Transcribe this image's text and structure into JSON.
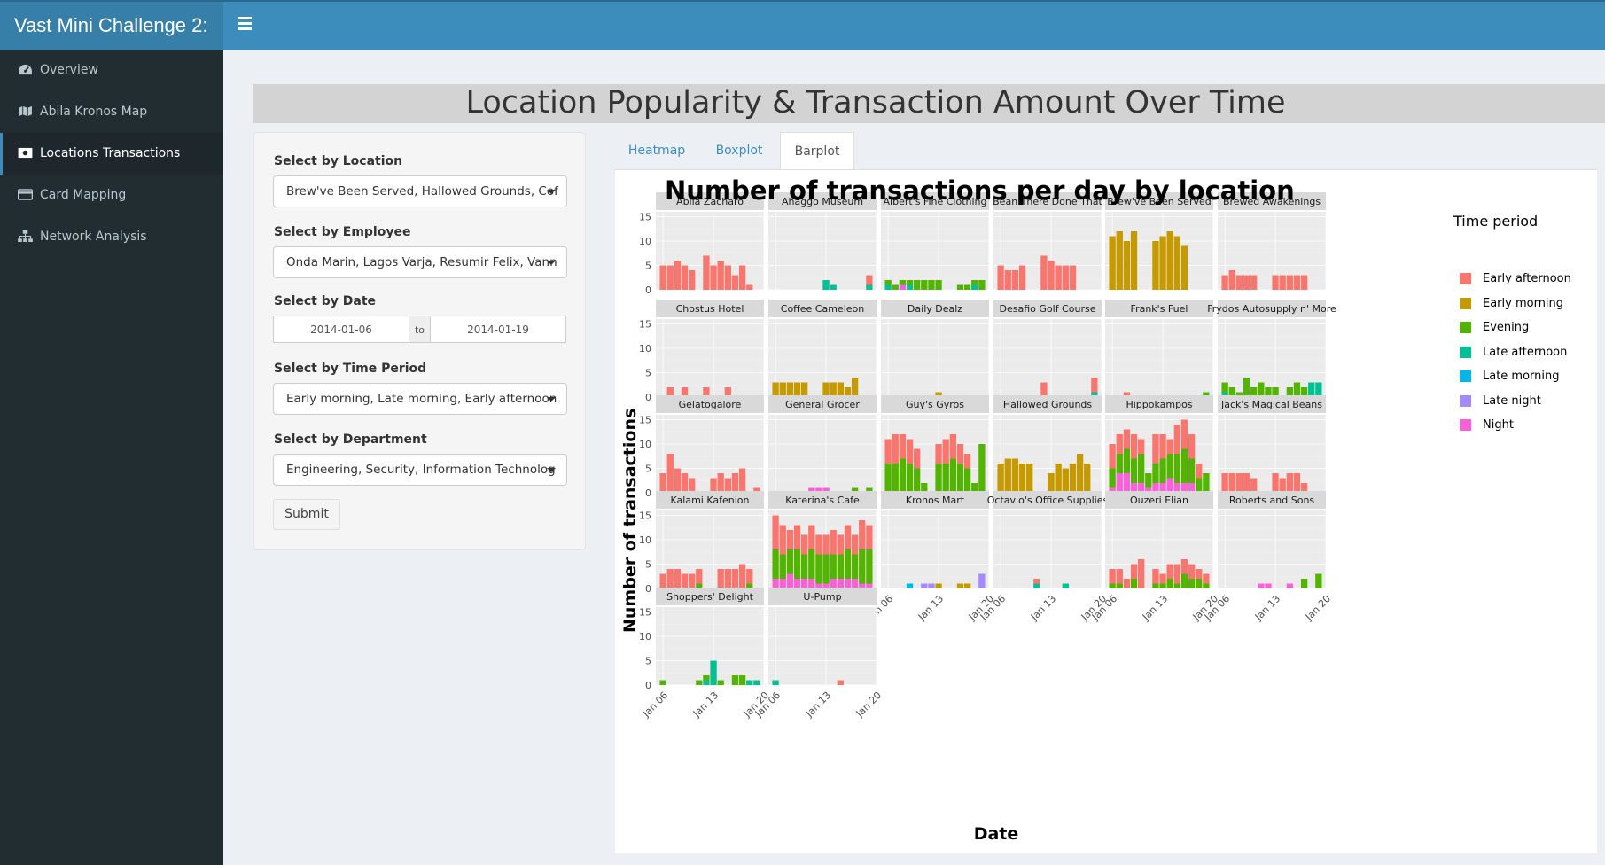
{
  "app": {
    "brand": "Vast Mini Challenge 2:"
  },
  "sidebar": {
    "items": [
      {
        "label": "Overview",
        "icon": "dashboard-icon"
      },
      {
        "label": "Abila Kronos Map",
        "icon": "map-icon"
      },
      {
        "label": "Locations Transactions",
        "icon": "money-icon"
      },
      {
        "label": "Card Mapping",
        "icon": "credit-card-icon"
      },
      {
        "label": "Network Analysis",
        "icon": "sitemap-icon"
      }
    ]
  },
  "page": {
    "title": "Location Popularity & Transaction Amount Over Time"
  },
  "filters": {
    "location": {
      "label": "Select by Location",
      "value": "Brew've Been Served, Hallowed Grounds, Cof"
    },
    "employee": {
      "label": "Select by Employee",
      "value": "Onda Marin, Lagos Varja, Resumir Felix, Vann"
    },
    "date": {
      "label": "Select by Date",
      "start": "2014-01-06",
      "separator": "to",
      "end": "2014-01-19"
    },
    "time_period": {
      "label": "Select by Time Period",
      "value": "Early morning, Late morning, Early afternoon"
    },
    "department": {
      "label": "Select by Department",
      "value": "Engineering, Security, Information Technolog"
    },
    "submit_label": "Submit"
  },
  "tabs": [
    "Heatmap",
    "Boxplot",
    "Barplot"
  ],
  "active_tab": "Barplot",
  "chart_data": {
    "type": "bar",
    "stacked": true,
    "faceted": true,
    "title": "Number of transactions per day by location",
    "xlabel": "Date",
    "ylabel": "Number of transactions",
    "ylim": [
      0,
      16
    ],
    "yticks": [
      0,
      5,
      10,
      15
    ],
    "xticks": [
      "Jan 06",
      "Jan 13",
      "Jan 20"
    ],
    "days": [
      "2014-01-06",
      "2014-01-07",
      "2014-01-08",
      "2014-01-09",
      "2014-01-10",
      "2014-01-11",
      "2014-01-12",
      "2014-01-13",
      "2014-01-14",
      "2014-01-15",
      "2014-01-16",
      "2014-01-17",
      "2014-01-18",
      "2014-01-19"
    ],
    "legend": {
      "title": "Time period",
      "position": "right"
    },
    "series": [
      {
        "name": "Early afternoon",
        "color": "#F8766D"
      },
      {
        "name": "Early morning",
        "color": "#C49A00"
      },
      {
        "name": "Evening",
        "color": "#53B400"
      },
      {
        "name": "Late afternoon",
        "color": "#00C094"
      },
      {
        "name": "Late morning",
        "color": "#00B6EB"
      },
      {
        "name": "Late night",
        "color": "#A58AFF"
      },
      {
        "name": "Night",
        "color": "#FB61D7"
      }
    ],
    "panels": [
      {
        "name": "Abila Zacharo",
        "bars": [
          {
            "EA": 5
          },
          {
            "EA": 5
          },
          {
            "EA": 6
          },
          {
            "EA": 5
          },
          {
            "EA": 4
          },
          {},
          {
            "EA": 7
          },
          {
            "EA": 5
          },
          {
            "EA": 6
          },
          {
            "EA": 5
          },
          {
            "EA": 3
          },
          {
            "EA": 5
          },
          {
            "EA": 1
          },
          {}
        ]
      },
      {
        "name": "Ahaggo Museum",
        "bars": [
          {},
          {},
          {},
          {},
          {},
          {},
          {},
          {
            "LA": 2
          },
          {
            "LA": 1
          },
          {},
          {},
          {},
          {},
          {
            "EA": 2,
            "LA": 1
          }
        ]
      },
      {
        "name": "Albert's Fine Clothing",
        "bars": [
          {
            "E": 1,
            "LA": 1
          },
          {
            "E": 1
          },
          {
            "E": 1,
            "N": 1
          },
          {
            "E": 1,
            "LA": 1
          },
          {
            "E": 2
          },
          {
            "E": 2
          },
          {
            "E": 2
          },
          {
            "E": 2
          },
          {},
          {},
          {
            "E": 1
          },
          {
            "E": 1
          },
          {
            "E": 1,
            "LA": 1
          },
          {
            "E": 2
          }
        ]
      },
      {
        "name": "Bean There Done That",
        "bars": [
          {
            "EA": 5
          },
          {
            "EA": 4
          },
          {
            "EA": 4
          },
          {
            "EA": 5
          },
          {},
          {},
          {
            "EA": 7
          },
          {
            "EA": 6
          },
          {
            "EA": 5
          },
          {
            "EA": 5
          },
          {
            "EA": 5
          },
          {},
          {},
          {}
        ]
      },
      {
        "name": "Brew've Been Served",
        "bars": [
          {
            "EM": 11
          },
          {
            "EM": 12
          },
          {
            "EM": 10
          },
          {
            "EM": 12
          },
          {},
          {},
          {
            "EM": 10
          },
          {
            "EM": 11
          },
          {
            "EM": 12
          },
          {
            "EM": 11
          },
          {
            "EM": 9
          },
          {},
          {},
          {}
        ]
      },
      {
        "name": "Brewed Awakenings",
        "bars": [
          {
            "EA": 3
          },
          {
            "EA": 4
          },
          {
            "EA": 3
          },
          {
            "EA": 3
          },
          {
            "EA": 3
          },
          {},
          {},
          {
            "EA": 3
          },
          {
            "EA": 3
          },
          {
            "EA": 3
          },
          {
            "EA": 3
          },
          {
            "EA": 3
          },
          {},
          {}
        ]
      },
      {
        "name": "Chostus Hotel",
        "bars": [
          {},
          {
            "EA": 2
          },
          {},
          {
            "EA": 2
          },
          {},
          {},
          {
            "EA": 2
          },
          {},
          {},
          {
            "EA": 2
          },
          {},
          {},
          {},
          {}
        ]
      },
      {
        "name": "Coffee Cameleon",
        "bars": [
          {
            "EM": 3
          },
          {
            "EM": 3
          },
          {
            "EM": 3
          },
          {
            "EM": 3
          },
          {
            "EM": 3
          },
          {},
          {},
          {
            "EM": 3
          },
          {
            "EM": 3
          },
          {
            "EM": 3
          },
          {
            "EM": 2
          },
          {
            "EM": 4
          },
          {},
          {}
        ]
      },
      {
        "name": "Daily Dealz",
        "bars": [
          {},
          {},
          {},
          {},
          {},
          {},
          {},
          {
            "EM": 1
          },
          {},
          {},
          {},
          {},
          {},
          {}
        ]
      },
      {
        "name": "Desafio Golf Course",
        "bars": [
          {},
          {},
          {},
          {},
          {},
          {},
          {
            "EA": 3
          },
          {},
          {},
          {},
          {},
          {},
          {},
          {
            "EA": 3,
            "LA": 1
          }
        ]
      },
      {
        "name": "Frank's Fuel",
        "bars": [
          {},
          {},
          {
            "EA": 1
          },
          {},
          {},
          {},
          {},
          {},
          {},
          {},
          {},
          {},
          {},
          {
            "E": 1
          }
        ]
      },
      {
        "name": "Frydos Autosupply n' More",
        "bars": [
          {
            "E": 2,
            "LA": 1
          },
          {
            "E": 2
          },
          {
            "E": 1
          },
          {
            "E": 4
          },
          {
            "E": 2
          },
          {
            "E": 3
          },
          {
            "E": 2
          },
          {
            "E": 2
          },
          {},
          {
            "E": 2
          },
          {
            "E": 3
          },
          {
            "E": 2
          },
          {
            "LA": 3
          },
          {
            "LA": 3
          }
        ]
      },
      {
        "name": "Gelatogalore",
        "bars": [
          {
            "EA": 4
          },
          {
            "EA": 8
          },
          {
            "EA": 5
          },
          {
            "EA": 4
          },
          {
            "EA": 3
          },
          {},
          {},
          {
            "EA": 3
          },
          {
            "EA": 4
          },
          {
            "EA": 3
          },
          {
            "EA": 4
          },
          {
            "EA": 5
          },
          {},
          {
            "EA": 1
          }
        ]
      },
      {
        "name": "General Grocer",
        "bars": [
          {},
          {},
          {},
          {},
          {},
          {
            "N": 1
          },
          {
            "N": 1
          },
          {
            "N": 1
          },
          {},
          {},
          {},
          {
            "E": 1
          },
          {},
          {
            "E": 1
          }
        ]
      },
      {
        "name": "Guy's Gyros",
        "bars": [
          {
            "EA": 5,
            "E": 6
          },
          {
            "EA": 6,
            "E": 6
          },
          {
            "EA": 5,
            "E": 7
          },
          {
            "EA": 5,
            "E": 6
          },
          {
            "EA": 4,
            "E": 5
          },
          {
            "E": 2
          },
          {},
          {
            "EA": 4,
            "E": 6
          },
          {
            "EA": 5,
            "E": 6
          },
          {
            "EA": 5,
            "E": 7
          },
          {
            "EA": 4,
            "E": 6
          },
          {
            "EA": 3,
            "E": 5
          },
          {
            "E": 2
          },
          {
            "E": 10
          }
        ]
      },
      {
        "name": "Hallowed Grounds",
        "bars": [
          {
            "EM": 6
          },
          {
            "EM": 7
          },
          {
            "EM": 7
          },
          {
            "EM": 6
          },
          {
            "EM": 6
          },
          {},
          {},
          {
            "EM": 4
          },
          {
            "EM": 6
          },
          {
            "EM": 5
          },
          {
            "EM": 6
          },
          {
            "EM": 8
          },
          {
            "EM": 6
          },
          {}
        ]
      },
      {
        "name": "Hippokampos",
        "bars": [
          {
            "EA": 5,
            "E": 4,
            "N": 1
          },
          {
            "EA": 4,
            "E": 4,
            "N": 4
          },
          {
            "EA": 4,
            "E": 5,
            "N": 4
          },
          {
            "EA": 5,
            "E": 5,
            "N": 2
          },
          {
            "EA": 3,
            "E": 6,
            "N": 2
          },
          {
            "E": 3,
            "N": 1
          },
          {
            "EA": 6,
            "E": 4,
            "N": 2
          },
          {
            "EA": 5,
            "E": 5,
            "N": 2
          },
          {
            "EA": 3,
            "E": 5,
            "N": 3
          },
          {
            "EA": 6,
            "E": 6,
            "N": 2
          },
          {
            "EA": 6,
            "E": 7,
            "N": 2
          },
          {
            "EA": 5,
            "E": 5,
            "N": 2
          },
          {
            "EA": 3,
            "E": 3
          },
          {
            "E": 4
          }
        ]
      },
      {
        "name": "Jack's Magical Beans",
        "bars": [
          {
            "EA": 4
          },
          {
            "EA": 4
          },
          {
            "EA": 4
          },
          {
            "EA": 4
          },
          {
            "EA": 3
          },
          {},
          {},
          {
            "EA": 4
          },
          {
            "EA": 3
          },
          {
            "EA": 4
          },
          {
            "EA": 4
          },
          {
            "EA": 2
          },
          {},
          {}
        ]
      },
      {
        "name": "Kalami Kafenion",
        "bars": [
          {
            "EA": 3
          },
          {
            "EA": 4
          },
          {
            "EA": 4
          },
          {
            "EA": 3
          },
          {
            "EA": 3
          },
          {
            "EA": 3,
            "E": 1
          },
          {},
          {},
          {
            "EA": 4
          },
          {
            "EA": 4
          },
          {
            "EA": 4
          },
          {
            "EA": 5
          },
          {
            "EA": 3,
            "E": 1
          },
          {}
        ]
      },
      {
        "name": "Katerina's Cafe",
        "bars": [
          {
            "EA": 7,
            "E": 6,
            "N": 2
          },
          {
            "EA": 6,
            "E": 5,
            "N": 2
          },
          {
            "EA": 4,
            "E": 5,
            "N": 3
          },
          {
            "EA": 5,
            "E": 6,
            "N": 2
          },
          {
            "EA": 4,
            "E": 5,
            "N": 2
          },
          {
            "EA": 5,
            "E": 6,
            "N": 2
          },
          {
            "EA": 4,
            "E": 6,
            "N": 1
          },
          {
            "EA": 4,
            "E": 6,
            "N": 1
          },
          {
            "EA": 5,
            "E": 5,
            "N": 2
          },
          {
            "EA": 4,
            "E": 5,
            "N": 2
          },
          {
            "EA": 5,
            "E": 6,
            "N": 2
          },
          {
            "EA": 4,
            "E": 5,
            "N": 2
          },
          {
            "EA": 6,
            "E": 7,
            "N": 1
          },
          {
            "EA": 5,
            "E": 7,
            "N": 1
          }
        ]
      },
      {
        "name": "Kronos Mart",
        "bars": [
          {},
          {},
          {},
          {
            "LM": 1
          },
          {},
          {
            "LN": 1
          },
          {
            "LN": 1
          },
          {
            "EM": 1
          },
          {},
          {},
          {
            "EM": 1
          },
          {
            "EM": 1
          },
          {},
          {
            "LN": 3
          }
        ]
      },
      {
        "name": "Octavio's Office Supplies",
        "bars": [
          {},
          {},
          {},
          {},
          {},
          {
            "EA": 1,
            "LA": 1
          },
          {},
          {},
          {},
          {
            "LA": 1
          },
          {},
          {},
          {},
          {}
        ]
      },
      {
        "name": "Ouzeri Elian",
        "bars": [
          {
            "EA": 3,
            "E": 1
          },
          {
            "EA": 3,
            "E": 1
          },
          {
            "EA": 2
          },
          {
            "EA": 3,
            "E": 2
          },
          {
            "EA": 6
          },
          {},
          {
            "EA": 3,
            "E": 1
          },
          {
            "EA": 2,
            "E": 1
          },
          {
            "EA": 3,
            "E": 2
          },
          {
            "EA": 4,
            "E": 1
          },
          {
            "EA": 3,
            "E": 3
          },
          {
            "EA": 3,
            "E": 2
          },
          {
            "EA": 2,
            "E": 2
          },
          {
            "EA": 2,
            "E": 1
          }
        ]
      },
      {
        "name": "Roberts and Sons",
        "bars": [
          {},
          {},
          {},
          {},
          {},
          {
            "N": 1
          },
          {
            "N": 1
          },
          {},
          {},
          {
            "N": 1
          },
          {},
          {
            "E": 2
          },
          {},
          {
            "E": 3
          }
        ]
      },
      {
        "name": "Shoppers' Delight",
        "bars": [
          {
            "E": 1
          },
          {},
          {},
          {},
          {},
          {
            "E": 1
          },
          {
            "E": 1,
            "LA": 1
          },
          {
            "LA": 5
          },
          {
            "E": 1
          },
          {},
          {
            "E": 2
          },
          {
            "E": 2
          },
          {
            "LA": 1
          },
          {
            "LA": 1
          }
        ]
      },
      {
        "name": "U-Pump",
        "bars": [
          {
            "LA": 1
          },
          {},
          {},
          {},
          {},
          {},
          {},
          {},
          {},
          {
            "EA": 1
          },
          {},
          {},
          {},
          {}
        ]
      }
    ]
  }
}
